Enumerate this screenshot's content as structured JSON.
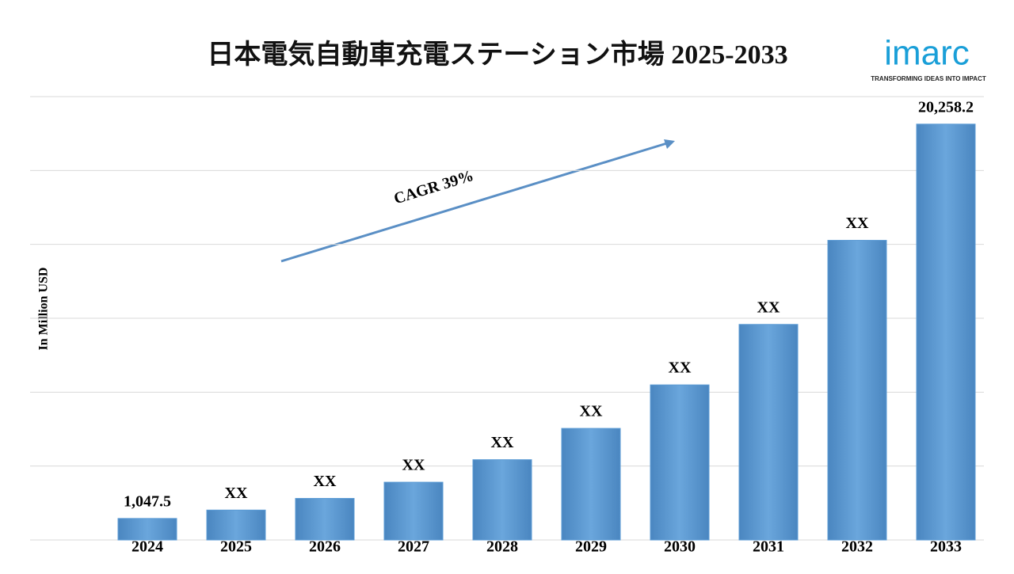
{
  "chart_data": {
    "type": "bar",
    "title": "日本電気自動車充電ステーション市場 2025-2033",
    "y_label": "In Million USD",
    "categories": [
      "2024",
      "2025",
      "2026",
      "2027",
      "2028",
      "2029",
      "2030",
      "2031",
      "2032",
      "2033"
    ],
    "values": [
      1047.5,
      1456,
      2024,
      2813,
      3910,
      5435,
      7555,
      10501,
      14597,
      20258.2
    ],
    "value_labels": [
      "1,047.5",
      "XX",
      "XX",
      "XX",
      "XX",
      "XX",
      "XX",
      "XX",
      "XX",
      "20,258.2"
    ],
    "color": "#5b9bd5",
    "ylim": [
      0,
      21600
    ],
    "yticks": [
      0,
      3600,
      7200,
      10800,
      14400,
      18000,
      21600
    ],
    "grid": true,
    "annotation": "CAGR 39%"
  },
  "logo": {
    "name": "imarc",
    "tagline": "TRANSFORMING IDEAS INTO IMPACT"
  }
}
